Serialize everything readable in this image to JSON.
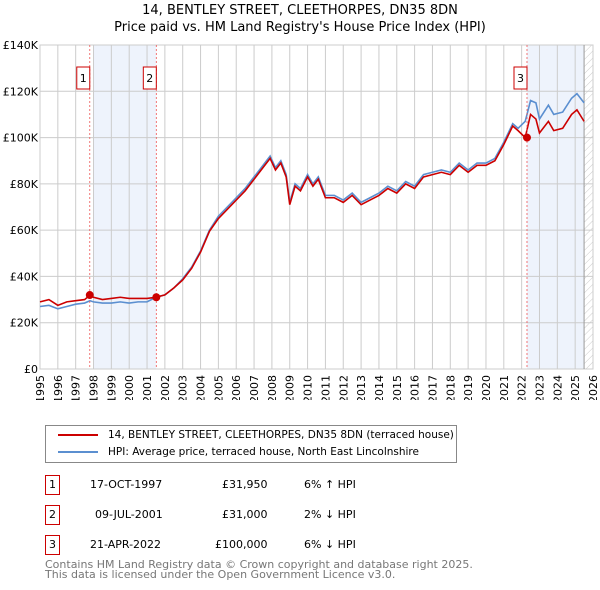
{
  "chart_data": {
    "type": "line",
    "title": "14, BENTLEY STREET, CLEETHORPES, DN35 8DN",
    "subtitle": "Price paid vs. HM Land Registry's House Price Index (HPI)",
    "xlim": [
      1995,
      2026
    ],
    "ylim": [
      0,
      140000
    ],
    "xticks": [
      "1995",
      "1996",
      "1997",
      "1998",
      "1999",
      "2000",
      "2001",
      "2002",
      "2003",
      "2004",
      "2005",
      "2006",
      "2007",
      "2008",
      "2009",
      "2010",
      "2011",
      "2012",
      "2013",
      "2014",
      "2015",
      "2016",
      "2017",
      "2018",
      "2019",
      "2020",
      "2021",
      "2022",
      "2023",
      "2024",
      "2025",
      "2026"
    ],
    "yticks": [
      {
        "v": 0,
        "label": "£0"
      },
      {
        "v": 20000,
        "label": "£20K"
      },
      {
        "v": 40000,
        "label": "£40K"
      },
      {
        "v": 60000,
        "label": "£60K"
      },
      {
        "v": 80000,
        "label": "£80K"
      },
      {
        "v": 100000,
        "label": "£100K"
      },
      {
        "v": 120000,
        "label": "£120K"
      },
      {
        "v": 140000,
        "label": "£140K"
      }
    ],
    "grid": true,
    "x": [
      1995,
      1995.5,
      1996,
      1996.5,
      1997,
      1997.5,
      1997.8,
      1998,
      1998.5,
      1999,
      1999.5,
      2000,
      2000.5,
      2001,
      2001.5,
      2002,
      2002.5,
      2003,
      2003.5,
      2004,
      2004.5,
      2005,
      2005.5,
      2006,
      2006.5,
      2007,
      2007.5,
      2007.9,
      2008.2,
      2008.5,
      2008.8,
      2009,
      2009.3,
      2009.6,
      2010,
      2010.3,
      2010.6,
      2011,
      2011.5,
      2012,
      2012.5,
      2013,
      2013.5,
      2014,
      2014.5,
      2015,
      2015.5,
      2016,
      2016.5,
      2017,
      2017.5,
      2018,
      2018.5,
      2019,
      2019.5,
      2020,
      2020.5,
      2021,
      2021.5,
      2021.8,
      2022.2,
      2022.5,
      2022.8,
      2023,
      2023.5,
      2023.8,
      2024.3,
      2024.8,
      2025.1,
      2025.5
    ],
    "series": [
      {
        "name": "14, BENTLEY STREET, CLEETHORPES, DN35 8DN (terraced house)",
        "color": "#cc0000",
        "values_k": [
          29,
          30,
          27.5,
          29,
          29.5,
          30,
          31.9,
          31,
          30,
          30.5,
          31,
          30.5,
          30.5,
          30.5,
          31,
          32,
          35,
          38.5,
          43.5,
          50.5,
          59.5,
          65,
          69,
          73,
          77,
          82,
          87,
          91,
          86,
          89,
          83,
          71,
          79,
          77,
          83,
          79,
          82,
          74,
          74,
          72,
          75,
          71,
          73,
          75,
          78,
          76,
          80,
          78,
          83,
          84,
          85,
          84,
          88,
          85,
          88,
          88,
          90,
          97,
          105,
          103,
          100,
          110,
          108,
          102,
          107,
          103,
          104,
          110,
          112,
          107
        ]
      },
      {
        "name": "HPI: Average price, terraced house, North East Lincolnshire",
        "color": "#5b8fd0",
        "values_k": [
          27,
          27.5,
          26,
          27,
          28,
          28.5,
          29.5,
          29,
          28.5,
          28.5,
          29,
          28.5,
          29,
          29,
          31,
          32,
          35,
          39,
          44,
          51,
          60,
          66,
          70,
          74,
          78,
          83,
          88,
          92,
          87,
          90,
          84,
          72,
          80,
          78,
          84,
          80,
          83,
          75,
          75,
          73,
          76,
          72,
          74,
          76,
          79,
          77,
          81,
          79,
          84,
          85,
          86,
          85,
          89,
          86,
          89,
          89,
          91,
          98,
          106,
          104,
          107,
          116,
          115,
          108,
          114,
          110,
          111,
          117,
          119,
          115
        ]
      }
    ],
    "sales": [
      {
        "id": "1",
        "x": 1997.79,
        "price": 31950,
        "date": "17-OCT-1997",
        "price_label": "£31,950",
        "hpi": "6% ↑ HPI"
      },
      {
        "id": "2",
        "x": 2001.52,
        "price": 31000,
        "date": "09-JUL-2001",
        "price_label": "£31,000",
        "hpi": "2% ↓ HPI"
      },
      {
        "id": "3",
        "x": 2022.3,
        "price": 100000,
        "date": "21-APR-2022",
        "price_label": "£100,000",
        "hpi": "6% ↓ HPI"
      }
    ],
    "shaded_ranges": [
      [
        1998,
        2001.52
      ],
      [
        2022.3,
        2025.5
      ]
    ],
    "forecast_from": 2025.5
  },
  "footer": [
    "Contains HM Land Registry data © Crown copyright and database right 2025.",
    "This data is licensed under the Open Government Licence v3.0."
  ]
}
